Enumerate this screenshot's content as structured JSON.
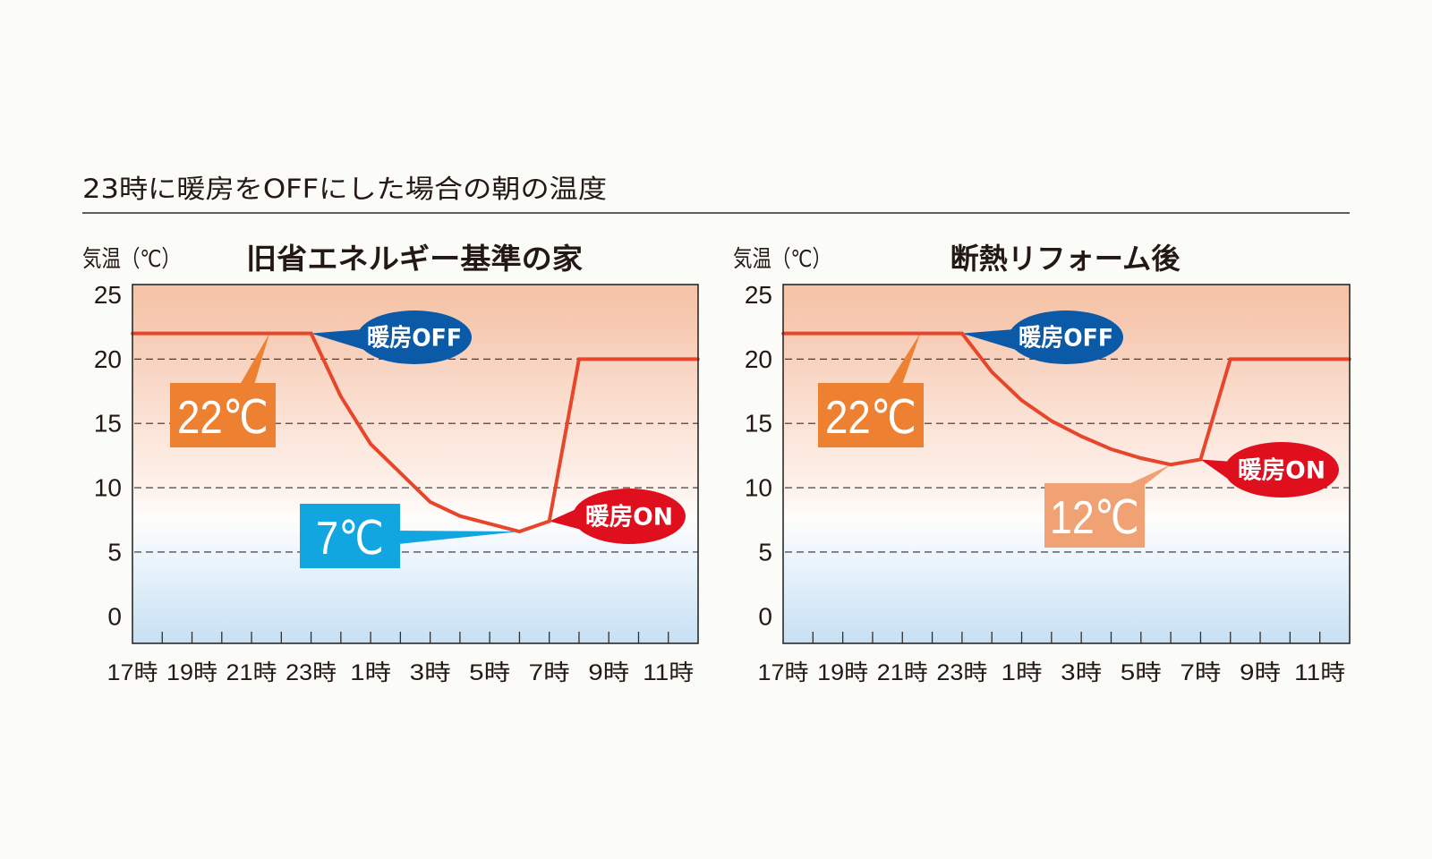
{
  "page": {
    "title": "23時に暖房をOFFにした場合の朝の温度",
    "background": "#fbfbf7"
  },
  "chart_data": [
    {
      "type": "line",
      "title": "旧省エネルギー基準の家",
      "ylabel": "気温（℃）",
      "xlabel": "",
      "xlim": [
        17,
        36
      ],
      "ylim": [
        -2.1,
        25.8
      ],
      "grid": true,
      "gridlines": [
        5,
        10,
        15,
        20
      ],
      "yticks": [
        0,
        5,
        10,
        15,
        20,
        25
      ],
      "ytick_labels": [
        "0",
        "5",
        "10",
        "15",
        "20",
        "25"
      ],
      "xticks_minor": [
        18,
        19,
        20,
        21,
        22,
        23,
        24,
        25,
        26,
        27,
        28,
        29,
        30,
        31,
        32,
        33,
        34,
        35
      ],
      "xtick_labels": [
        {
          "x": 17,
          "label": "17時"
        },
        {
          "x": 19,
          "label": "19時"
        },
        {
          "x": 21,
          "label": "21時"
        },
        {
          "x": 23,
          "label": "23時"
        },
        {
          "x": 25,
          "label": "1時"
        },
        {
          "x": 27,
          "label": "3時"
        },
        {
          "x": 29,
          "label": "5時"
        },
        {
          "x": 31,
          "label": "7時"
        },
        {
          "x": 33,
          "label": "9時"
        },
        {
          "x": 35,
          "label": "11時"
        }
      ],
      "legend": "none",
      "series": [
        {
          "color": "#e8462a",
          "x": [
            17,
            23,
            24,
            25,
            27,
            28,
            30,
            31,
            32,
            36
          ],
          "y": [
            22,
            22,
            17.1,
            13.4,
            8.9,
            7.8,
            6.6,
            7.4,
            20,
            20
          ]
        }
      ],
      "annotations": [
        {
          "type": "box",
          "text": "22℃",
          "color": "#ee8032",
          "target": [
            21.6,
            22
          ]
        },
        {
          "type": "bubble",
          "text": "暖房OFF",
          "color": "#0b5aa8",
          "target": [
            23,
            22
          ]
        },
        {
          "type": "box",
          "text": "7℃",
          "color": "#12a6e0",
          "target": [
            30,
            6.6
          ]
        },
        {
          "type": "bubble",
          "text": "暖房ON",
          "color": "#e00f1e",
          "target": [
            31,
            7.4
          ]
        }
      ]
    },
    {
      "type": "line",
      "title": "断熱リフォーム後",
      "ylabel": "気温（℃）",
      "xlabel": "",
      "xlim": [
        17,
        36
      ],
      "ylim": [
        -2.1,
        25.8
      ],
      "grid": true,
      "gridlines": [
        5,
        10,
        15,
        20
      ],
      "yticks": [
        0,
        5,
        10,
        15,
        20,
        25
      ],
      "ytick_labels": [
        "0",
        "5",
        "10",
        "15",
        "20",
        "25"
      ],
      "xticks_minor": [
        18,
        19,
        20,
        21,
        22,
        23,
        24,
        25,
        26,
        27,
        28,
        29,
        30,
        31,
        32,
        33,
        34,
        35
      ],
      "xtick_labels": [
        {
          "x": 17,
          "label": "17時"
        },
        {
          "x": 19,
          "label": "19時"
        },
        {
          "x": 21,
          "label": "21時"
        },
        {
          "x": 23,
          "label": "23時"
        },
        {
          "x": 25,
          "label": "1時"
        },
        {
          "x": 27,
          "label": "3時"
        },
        {
          "x": 29,
          "label": "5時"
        },
        {
          "x": 31,
          "label": "7時"
        },
        {
          "x": 33,
          "label": "9時"
        },
        {
          "x": 35,
          "label": "11時"
        }
      ],
      "legend": "none",
      "series": [
        {
          "color": "#e8462a",
          "x": [
            17,
            23,
            24,
            25,
            26,
            27,
            28,
            29,
            30,
            31,
            32,
            36
          ],
          "y": [
            22,
            22,
            19.0,
            16.8,
            15.2,
            14.0,
            13.0,
            12.3,
            11.8,
            12.2,
            20,
            20
          ]
        }
      ],
      "annotations": [
        {
          "type": "box",
          "text": "22℃",
          "color": "#ee8032",
          "target": [
            21.6,
            22
          ]
        },
        {
          "type": "bubble",
          "text": "暖房OFF",
          "color": "#0b5aa8",
          "target": [
            23,
            22
          ]
        },
        {
          "type": "box",
          "text": "12℃",
          "color": "#f0a274",
          "target": [
            30,
            11.8
          ]
        },
        {
          "type": "bubble",
          "text": "暖房ON",
          "color": "#e00f1e",
          "target": [
            31,
            12.2
          ]
        }
      ]
    }
  ]
}
